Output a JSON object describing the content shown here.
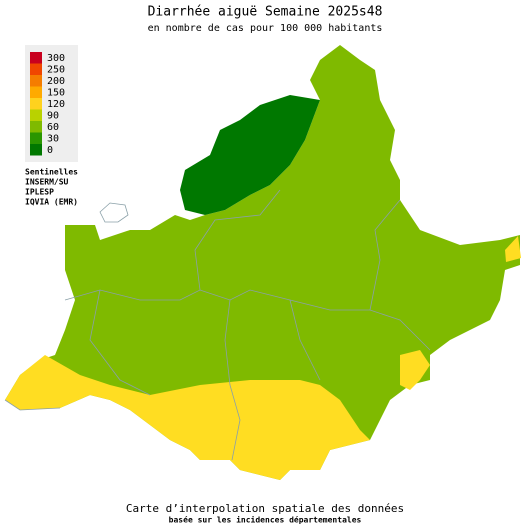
{
  "header": {
    "title": "Diarrhée aiguë Semaine 2025s48",
    "subtitle": "en nombre de cas pour 100 000 habitants"
  },
  "legend": {
    "items": [
      {
        "label": 300,
        "color": "#c8001e"
      },
      {
        "label": 250,
        "color": "#f04600"
      },
      {
        "label": 200,
        "color": "#f57d00"
      },
      {
        "label": 150,
        "color": "#ffaa00"
      },
      {
        "label": 120,
        "color": "#ffd21e"
      },
      {
        "label": 90,
        "color": "#b9d200"
      },
      {
        "label": 60,
        "color": "#7fba00"
      },
      {
        "label": 30,
        "color": "#2a9600"
      },
      {
        "label": 0,
        "color": "#007800"
      }
    ]
  },
  "sources": [
    "Sentinelles",
    "INSERM/SU",
    "IPLESP",
    "IQVIA (EMR)"
  ],
  "footer": {
    "line1": "Carte d’interpolation spatiale des données",
    "line2": "basée sur les incidences départementales"
  }
}
